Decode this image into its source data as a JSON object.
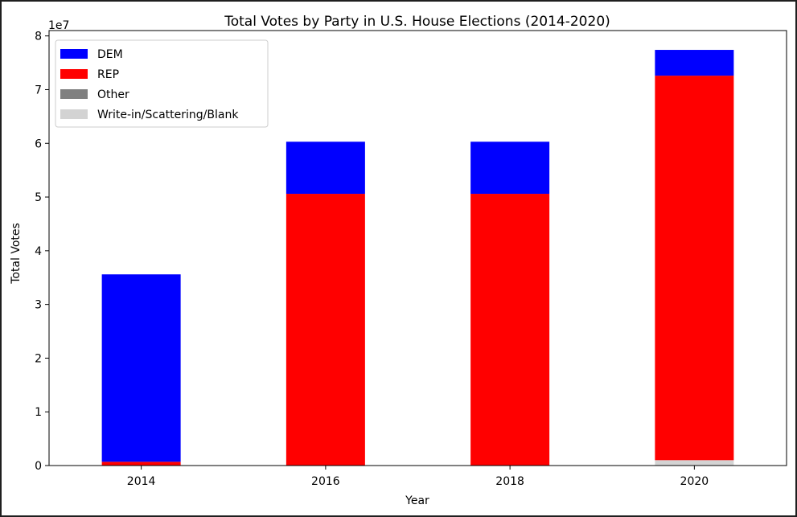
{
  "chart_data": {
    "type": "bar",
    "stacked": true,
    "title": "Total Votes by Party in U.S. House Elections (2014-2020)",
    "xlabel": "Year",
    "ylabel": "Total Votes",
    "y_offset_label": "1e7",
    "categories": [
      "2014",
      "2016",
      "2018",
      "2020"
    ],
    "yticks": [
      "0",
      "1",
      "2",
      "3",
      "4",
      "5",
      "6",
      "7",
      "8"
    ],
    "ylim": [
      0,
      81000000
    ],
    "legend_position": "top-left",
    "grid": false,
    "series": [
      {
        "name": "Write-in/Scattering/Blank",
        "color": "#d3d3d3",
        "values": [
          0,
          0,
          0,
          1000000
        ]
      },
      {
        "name": "Other",
        "color": "#808080",
        "values": [
          0,
          0,
          0,
          0
        ]
      },
      {
        "name": "REP",
        "color": "#ff0000",
        "values": [
          700000,
          50600000,
          50600000,
          71600000
        ]
      },
      {
        "name": "DEM",
        "color": "#0000ff",
        "values": [
          34900000,
          9700000,
          9700000,
          4800000
        ]
      }
    ],
    "legend_order": [
      "DEM",
      "REP",
      "Other",
      "Write-in/Scattering/Blank"
    ]
  }
}
